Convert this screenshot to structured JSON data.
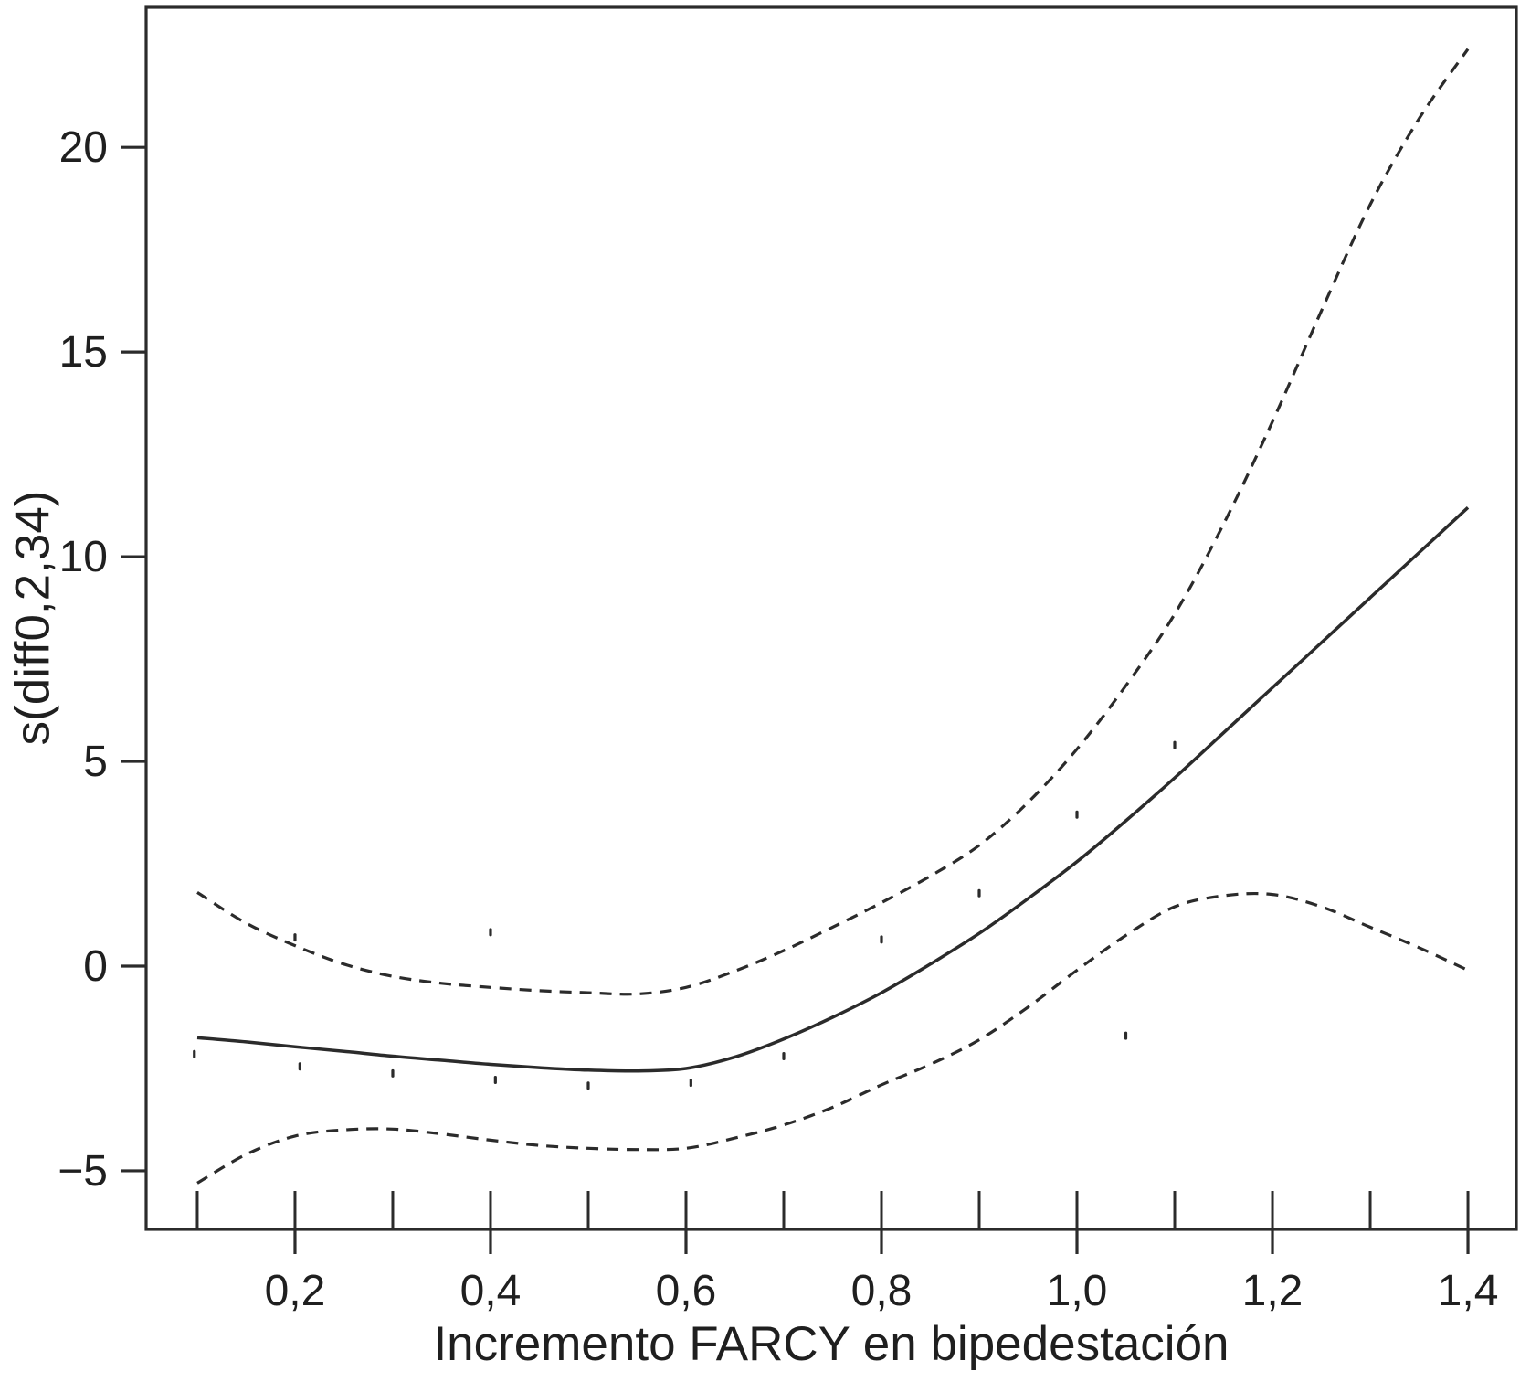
{
  "figure": {
    "background": "#ffffff",
    "line_color": "#2b2b2b",
    "text_color": "#1f1f1f"
  },
  "chart_data": {
    "type": "line",
    "title": "",
    "xlabel": "Incremento FARCY en bipedestación",
    "ylabel": "s(diff0,2,34)",
    "xlim": [
      0.0477,
      1.4495
    ],
    "ylim": [
      -6.43,
      23.42
    ],
    "grid": false,
    "legend_position": "none",
    "x_ticks": [
      {
        "value": 0.2,
        "label": "0,2"
      },
      {
        "value": 0.4,
        "label": "0,4"
      },
      {
        "value": 0.6,
        "label": "0,6"
      },
      {
        "value": 0.8,
        "label": "0,8"
      },
      {
        "value": 1.0,
        "label": "1,0"
      },
      {
        "value": 1.2,
        "label": "1,2"
      },
      {
        "value": 1.4,
        "label": "1,4"
      }
    ],
    "y_ticks": [
      {
        "value": -5,
        "label": "−5"
      },
      {
        "value": 0,
        "label": "0"
      },
      {
        "value": 5,
        "label": "5"
      },
      {
        "value": 10,
        "label": "10"
      },
      {
        "value": 15,
        "label": "15"
      },
      {
        "value": 20,
        "label": "20"
      }
    ],
    "series": [
      {
        "name": "smooth estimate s(diff0,2,34)",
        "style": "solid",
        "x": [
          0.1,
          0.15,
          0.2,
          0.25,
          0.3,
          0.35,
          0.4,
          0.45,
          0.5,
          0.55,
          0.6,
          0.65,
          0.7,
          0.75,
          0.8,
          0.85,
          0.9,
          0.95,
          1.0,
          1.05,
          1.1,
          1.15,
          1.2,
          1.25,
          1.3,
          1.35,
          1.4
        ],
        "y": [
          -1.75,
          -1.85,
          -1.97,
          -2.08,
          -2.2,
          -2.3,
          -2.4,
          -2.48,
          -2.54,
          -2.56,
          -2.5,
          -2.22,
          -1.78,
          -1.25,
          -0.65,
          0.05,
          0.8,
          1.65,
          2.55,
          3.55,
          4.6,
          5.7,
          6.8,
          7.9,
          9.0,
          10.1,
          11.2
        ]
      },
      {
        "name": "upper 95% confidence band",
        "style": "dashed",
        "x": [
          0.1,
          0.15,
          0.2,
          0.25,
          0.3,
          0.35,
          0.4,
          0.45,
          0.5,
          0.55,
          0.6,
          0.65,
          0.7,
          0.75,
          0.8,
          0.85,
          0.9,
          0.95,
          1.0,
          1.05,
          1.1,
          1.15,
          1.2,
          1.25,
          1.3,
          1.35,
          1.4
        ],
        "y": [
          1.8,
          1.05,
          0.5,
          0.05,
          -0.25,
          -0.42,
          -0.52,
          -0.6,
          -0.65,
          -0.68,
          -0.52,
          -0.12,
          0.38,
          0.95,
          1.55,
          2.2,
          2.95,
          4.0,
          5.3,
          6.85,
          8.6,
          10.8,
          13.3,
          16.0,
          18.6,
          20.7,
          22.4
        ]
      },
      {
        "name": "lower 95% confidence band",
        "style": "dashed",
        "x": [
          0.1,
          0.15,
          0.2,
          0.25,
          0.3,
          0.35,
          0.4,
          0.45,
          0.5,
          0.55,
          0.6,
          0.65,
          0.7,
          0.75,
          0.8,
          0.85,
          0.9,
          0.95,
          1.0,
          1.05,
          1.1,
          1.15,
          1.2,
          1.25,
          1.3,
          1.35,
          1.4
        ],
        "y": [
          -5.3,
          -4.6,
          -4.15,
          -4.0,
          -3.98,
          -4.1,
          -4.25,
          -4.38,
          -4.45,
          -4.48,
          -4.45,
          -4.2,
          -3.88,
          -3.45,
          -2.9,
          -2.4,
          -1.8,
          -1.0,
          -0.1,
          0.75,
          1.45,
          1.72,
          1.75,
          1.45,
          0.95,
          0.45,
          -0.1
        ]
      }
    ],
    "rug_x": [
      0.1,
      0.2,
      0.3,
      0.4,
      0.5,
      0.6,
      0.7,
      0.8,
      0.9,
      1.0,
      1.1,
      1.2,
      1.3,
      1.4
    ],
    "noise_dots": [
      [
        0.097,
        -2.15
      ],
      [
        0.2,
        0.7
      ],
      [
        0.205,
        -2.45
      ],
      [
        0.3,
        -2.62
      ],
      [
        0.4,
        0.83
      ],
      [
        0.405,
        -2.78
      ],
      [
        0.5,
        -2.92
      ],
      [
        0.605,
        -2.85
      ],
      [
        0.7,
        -2.2
      ],
      [
        0.8,
        0.65
      ],
      [
        0.9,
        1.78
      ],
      [
        1.0,
        3.7
      ],
      [
        1.05,
        -1.7
      ],
      [
        1.1,
        5.4
      ]
    ]
  }
}
